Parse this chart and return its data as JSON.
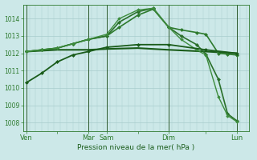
{
  "bg_color": "#cce8e8",
  "grid_color": "#a8cccc",
  "ylabel": "Pression niveau de la mer( hPa )",
  "ylim": [
    1007.5,
    1014.8
  ],
  "yticks": [
    1008,
    1009,
    1010,
    1011,
    1012,
    1013,
    1014
  ],
  "xtick_labels": [
    "Ven",
    "",
    "Mar",
    "Sam",
    "",
    "Dim",
    "",
    "Lun"
  ],
  "xtick_positions": [
    0,
    10,
    20,
    26,
    36,
    46,
    58,
    68
  ],
  "vlines": [
    0,
    20,
    26,
    46,
    68
  ],
  "lines": [
    {
      "x": [
        0,
        5,
        10,
        15,
        20,
        26,
        36,
        46,
        58,
        68
      ],
      "y": [
        1012.1,
        1012.15,
        1012.2,
        1012.2,
        1012.2,
        1012.25,
        1012.3,
        1012.2,
        1012.1,
        1012.0
      ],
      "color": "#1a5c1a",
      "lw": 1.5,
      "marker": null
    },
    {
      "x": [
        0,
        5,
        10,
        15,
        20,
        26,
        30,
        36,
        41,
        46,
        50,
        55,
        58,
        62,
        65,
        68
      ],
      "y": [
        1012.1,
        1012.2,
        1012.3,
        1012.55,
        1012.8,
        1013.0,
        1013.5,
        1014.2,
        1014.55,
        1013.5,
        1013.35,
        1013.2,
        1013.1,
        1012.0,
        1011.95,
        1011.9
      ],
      "color": "#2d7a2d",
      "lw": 1.2,
      "marker": "D",
      "ms": 2.0
    },
    {
      "x": [
        0,
        5,
        10,
        15,
        20,
        26,
        30,
        36,
        41,
        46,
        50,
        55,
        58,
        62,
        65,
        68
      ],
      "y": [
        1012.1,
        1012.2,
        1012.3,
        1012.55,
        1012.8,
        1013.0,
        1013.8,
        1014.4,
        1014.6,
        1013.5,
        1013.0,
        1012.5,
        1011.95,
        1010.5,
        1008.5,
        1008.1
      ],
      "color": "#2a702a",
      "lw": 1.2,
      "marker": "D",
      "ms": 2.0
    },
    {
      "x": [
        0,
        5,
        10,
        15,
        20,
        26,
        30,
        36,
        41,
        46,
        50,
        55,
        58,
        62,
        65,
        68
      ],
      "y": [
        1012.1,
        1012.2,
        1012.3,
        1012.55,
        1012.8,
        1013.1,
        1014.0,
        1014.5,
        1014.6,
        1013.5,
        1012.8,
        1012.2,
        1011.9,
        1009.5,
        1008.4,
        1008.05
      ],
      "color": "#3d8c3d",
      "lw": 1.0,
      "marker": "D",
      "ms": 1.8
    },
    {
      "x": [
        0,
        5,
        10,
        15,
        20,
        26,
        36,
        46,
        58,
        68
      ],
      "y": [
        1010.3,
        1010.85,
        1011.5,
        1011.9,
        1012.1,
        1012.35,
        1012.5,
        1012.5,
        1012.2,
        1012.0
      ],
      "color": "#1a5c1a",
      "lw": 1.3,
      "marker": "D",
      "ms": 2.0
    }
  ]
}
